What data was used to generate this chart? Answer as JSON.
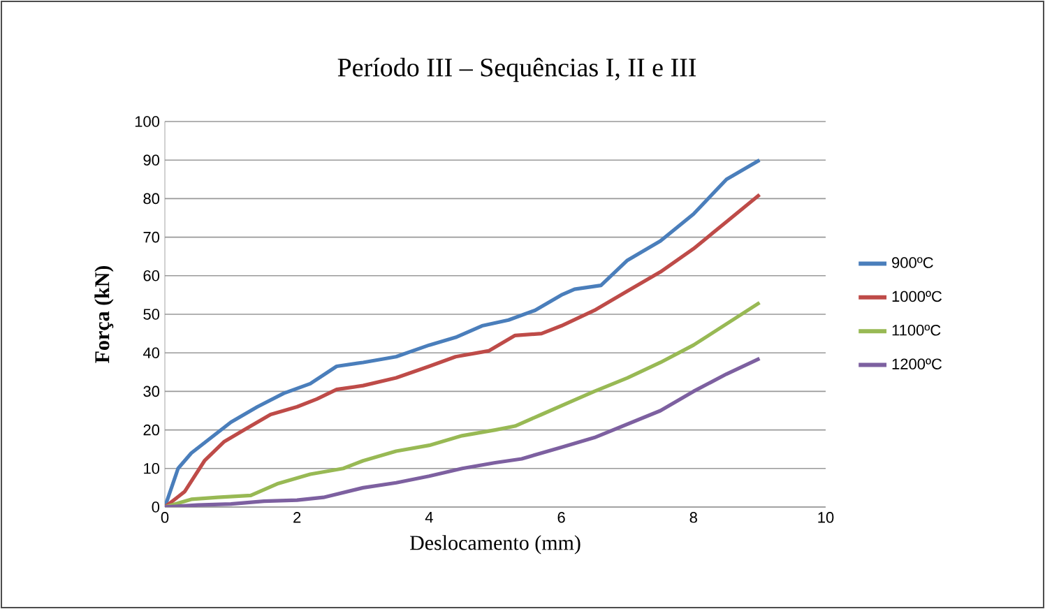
{
  "chart_data": {
    "type": "line",
    "title": "Período III – Sequências I, II e  III",
    "xlabel": "Deslocamento  (mm)",
    "ylabel": "Força (kN)",
    "xlim": [
      0,
      10
    ],
    "xticks": [
      0,
      2,
      4,
      6,
      8,
      10
    ],
    "ylim": [
      0,
      100
    ],
    "yticks": [
      0,
      10,
      20,
      30,
      40,
      50,
      60,
      70,
      80,
      90,
      100
    ],
    "grid": "y",
    "legend": "right",
    "marker": "none",
    "line_style": "solid",
    "series": [
      {
        "name": "900ºC",
        "color": "#4a7ebb",
        "x": [
          0,
          0.2,
          0.4,
          0.7,
          1,
          1.4,
          1.8,
          2.2,
          2.6,
          3,
          3.5,
          4,
          4.4,
          4.8,
          5.2,
          5.6,
          6,
          6.2,
          6.6,
          7,
          7.5,
          8,
          8.5,
          9
        ],
        "values": [
          0,
          10,
          14,
          18,
          22,
          26,
          29.5,
          32,
          36.5,
          37.5,
          39,
          42,
          44,
          47,
          48.5,
          51,
          55,
          56.5,
          57.5,
          64,
          69,
          76,
          85,
          90
        ]
      },
      {
        "name": "1000ºC",
        "color": "#be4b48",
        "x": [
          0,
          0.3,
          0.6,
          0.9,
          1.2,
          1.6,
          2,
          2.3,
          2.6,
          3,
          3.5,
          4,
          4.4,
          4.9,
          5.3,
          5.7,
          6,
          6.5,
          7,
          7.5,
          8,
          8.5,
          9
        ],
        "values": [
          0,
          4,
          12,
          17,
          20,
          24,
          26,
          28,
          30.5,
          31.5,
          33.5,
          36.5,
          39,
          40.5,
          44.5,
          45,
          47,
          51,
          56,
          61,
          67,
          74,
          81
        ]
      },
      {
        "name": "1100ºC",
        "color": "#98b954",
        "x": [
          0,
          0.4,
          0.8,
          1.3,
          1.7,
          2.2,
          2.7,
          3,
          3.5,
          4,
          4.5,
          5,
          5.3,
          5.7,
          6.1,
          6.5,
          7,
          7.5,
          8,
          8.5,
          9
        ],
        "values": [
          0,
          2,
          2.5,
          3,
          6,
          8.5,
          10,
          12,
          14.5,
          16,
          18.5,
          20,
          21,
          24,
          27,
          30,
          33.5,
          37.5,
          42,
          47.5,
          53
        ]
      },
      {
        "name": "1200ºC",
        "color": "#7d60a0",
        "x": [
          0,
          0.5,
          1,
          1.5,
          2,
          2.4,
          3,
          3.5,
          4,
          4.5,
          5,
          5.4,
          6,
          6.5,
          7,
          7.5,
          8,
          8.5,
          9
        ],
        "values": [
          0,
          0.5,
          0.8,
          1.5,
          1.8,
          2.5,
          5,
          6.3,
          8,
          10,
          11.5,
          12.5,
          15.5,
          18,
          21.5,
          25,
          30,
          34.5,
          38.5
        ]
      }
    ]
  }
}
